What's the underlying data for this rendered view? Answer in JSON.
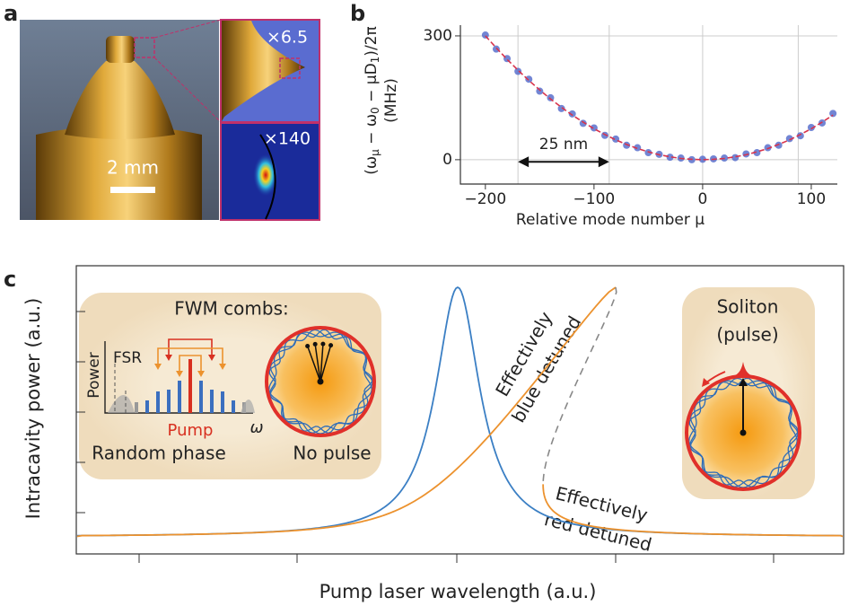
{
  "panel_labels": {
    "a": "a",
    "b": "b",
    "c": "c"
  },
  "panel_a": {
    "scale_bar": "2 mm",
    "zoom_1": "×6.5",
    "zoom_2": "×140"
  },
  "chart_data": {
    "type": "scatter",
    "ylabel": [
      "(ω",
      "μ",
      " − ω",
      "0",
      " − μD",
      "1",
      ")/2π"
    ],
    "yunit": "(MHz)",
    "xlabel": "Relative mode number μ",
    "annotation": "25 nm",
    "annotation_span": [
      -170,
      -86
    ],
    "x": [
      -200,
      -190,
      -180,
      -170,
      -160,
      -150,
      -140,
      -130,
      -120,
      -110,
      -100,
      -90,
      -80,
      -70,
      -60,
      -50,
      -40,
      -30,
      -20,
      -10,
      0,
      10,
      20,
      30,
      40,
      50,
      60,
      70,
      80,
      90,
      100,
      110,
      120
    ],
    "series": [
      {
        "color": "#4f67c9",
        "values": [
          302,
          268,
          245,
          214,
          195,
          166,
          150,
          124,
          111,
          88,
          77,
          59,
          50,
          35,
          29,
          17,
          13,
          6,
          4,
          0,
          1,
          2,
          4,
          5,
          14,
          17,
          29,
          35,
          51,
          58,
          78,
          89,
          112
        ]
      },
      {
        "color": "#d8344c",
        "mark": "line",
        "values": [
          300,
          271,
          243,
          217,
          192,
          169,
          147,
          127,
          108,
          91,
          75,
          61,
          48,
          37,
          27,
          19,
          12,
          7,
          3,
          1,
          0,
          1,
          3,
          7,
          12,
          19,
          27,
          37,
          48,
          61,
          75,
          91,
          108
        ]
      }
    ],
    "xlim": [
      -223,
      124
    ],
    "ylim": [
      -59,
      326
    ],
    "xticks": [
      {
        "value": -200,
        "label": "−200"
      },
      {
        "value": -100,
        "label": "−100"
      },
      0,
      100
    ],
    "yticks": [
      0,
      300
    ],
    "vlines": [
      -170,
      -86,
      0,
      88
    ]
  },
  "panel_c": {
    "ylabel": "Intracavity power (a.u.)",
    "xlabel": "Pump laser wavelength (a.u.)",
    "fwm_title": "FWM combs:",
    "fsr": "FSR",
    "power": "Power",
    "pump": "Pump",
    "omega": "ω",
    "random_phase": "Random phase",
    "no_pulse": "No pulse",
    "blue_1": "Effectively",
    "blue_2": "blue detuned",
    "red_1": "Effectively",
    "red_2": "red detuned",
    "soliton": "Soliton",
    "pulse": "(pulse)"
  }
}
